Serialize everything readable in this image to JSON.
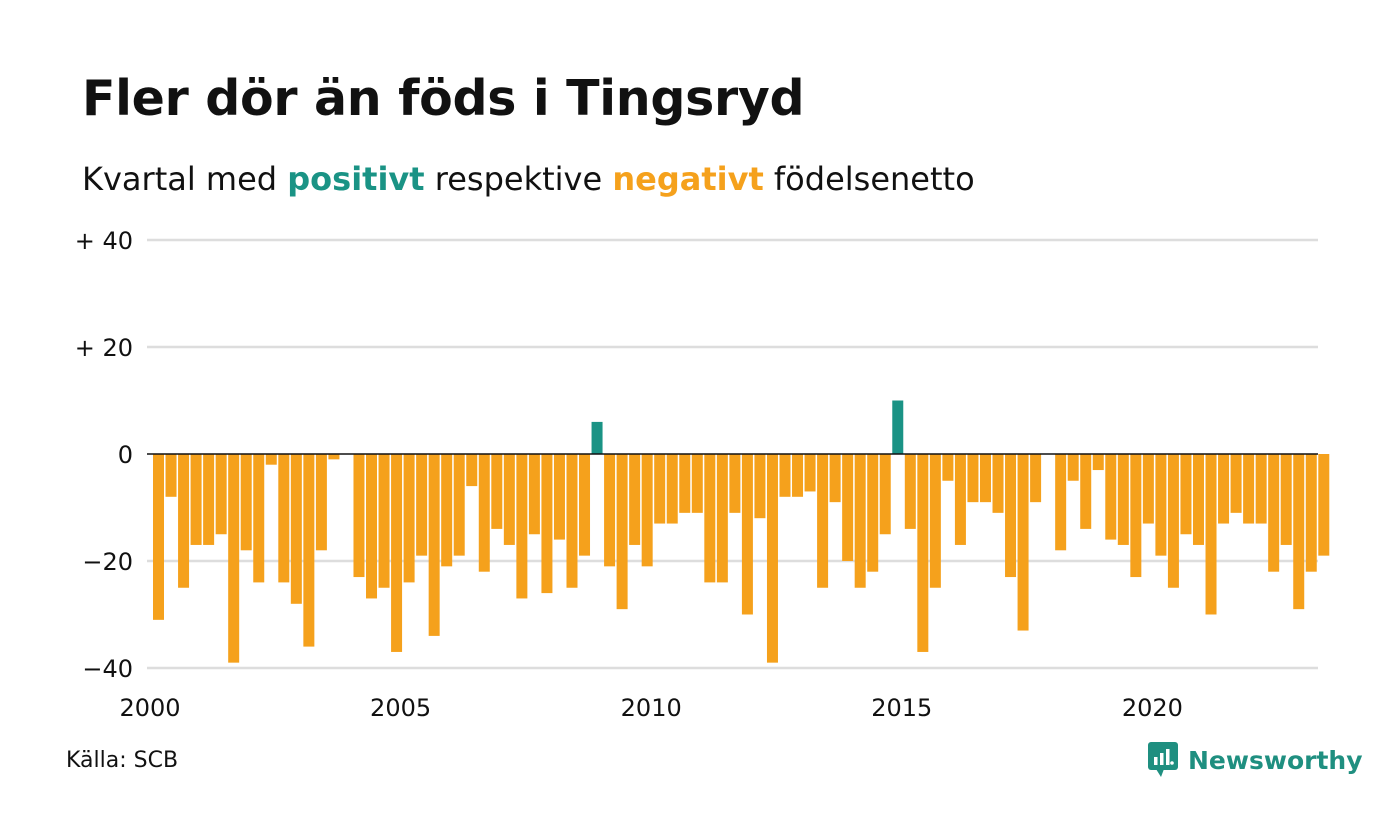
{
  "title": "Fler dör än föds i Tingsryd",
  "subtitle": {
    "prefix": "Kvartal med ",
    "positive": "positivt",
    "middle": " respektive ",
    "negative": "negativt",
    "suffix": " födelsenetto"
  },
  "source": "Källa: SCB",
  "brand": {
    "name": "Newsworthy",
    "icon": "newsworthy-logo-icon"
  },
  "colors": {
    "positive": "#1a9385",
    "negative": "#f5a11c",
    "grid": "#dddddd",
    "zero_line": "#111111"
  },
  "chart_data": {
    "type": "bar",
    "title": "Fler dör än föds i Tingsryd",
    "xlabel": "",
    "ylabel": "",
    "ylim": [
      -40,
      40
    ],
    "yticks": [
      40,
      20,
      0,
      -20,
      -40
    ],
    "ytick_labels": [
      "+ 40",
      "+ 20",
      "0",
      "−20",
      "−40"
    ],
    "xticks": [
      2000,
      2005,
      2010,
      2015,
      2020
    ],
    "xtick_labels": [
      "2000",
      "2005",
      "2010",
      "2015",
      "2020"
    ],
    "grid": true,
    "start": "2000 Q1",
    "frequency": "quarter",
    "values": [
      -31,
      -8,
      -25,
      -17,
      -17,
      -15,
      -39,
      -18,
      -24,
      -2,
      -24,
      -28,
      -36,
      -18,
      -1,
      0,
      -23,
      -27,
      -25,
      -37,
      -24,
      -19,
      -34,
      -21,
      -19,
      -6,
      -22,
      -14,
      -17,
      -27,
      -15,
      -26,
      -16,
      -25,
      -19,
      6,
      -21,
      -29,
      -17,
      -21,
      -13,
      -13,
      -11,
      -11,
      -24,
      -24,
      -11,
      -30,
      -12,
      -39,
      -8,
      -8,
      -7,
      -25,
      -9,
      -20,
      -25,
      -22,
      -15,
      10,
      -14,
      -37,
      -25,
      -5,
      -17,
      -9,
      -9,
      -11,
      -23,
      -33,
      -9,
      0,
      -18,
      -5,
      -14,
      -3,
      -16,
      -17,
      -23,
      -13,
      -19,
      -25,
      -15,
      -17,
      -30,
      -13,
      -11,
      -13,
      -13,
      -22,
      -17,
      -29,
      -22,
      -19
    ]
  }
}
